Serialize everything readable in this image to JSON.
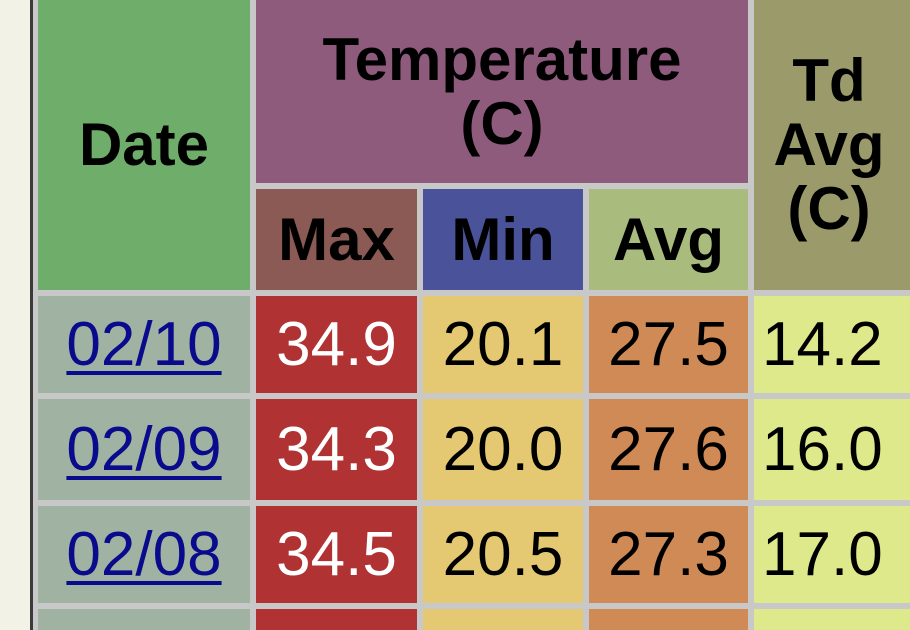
{
  "header": {
    "date": "Date",
    "temperature": "Temperature (C)",
    "max": "Max",
    "min": "Min",
    "avg": "Avg",
    "td_avg": "Td Avg (C)"
  },
  "table": {
    "rows": [
      [
        "02/10",
        "34.9",
        "20.1",
        "27.5",
        "14.2"
      ],
      [
        "02/09",
        "34.3",
        "20.0",
        "27.6",
        "16.0"
      ],
      [
        "02/08",
        "34.5",
        "20.5",
        "27.3",
        "17.0"
      ]
    ]
  }
}
